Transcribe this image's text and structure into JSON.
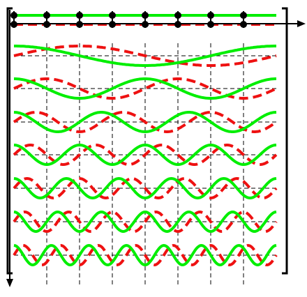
{
  "colors": {
    "cos_curve": "#00ee00",
    "sin_curve": "#ee1111",
    "grid": "#000000",
    "markers": "#000000",
    "bracket": "#000000",
    "arrow": "#000000"
  },
  "diagram": {
    "sample_count": 8,
    "mode_count": 8,
    "curves": [
      {
        "mode": 0,
        "cos_shown": true,
        "sin_shown": true
      },
      {
        "mode": 1,
        "cos_shown": true,
        "sin_shown": true
      },
      {
        "mode": 2,
        "cos_shown": true,
        "sin_shown": true
      },
      {
        "mode": 3,
        "cos_shown": true,
        "sin_shown": true
      },
      {
        "mode": 4,
        "cos_shown": true,
        "sin_shown": true
      },
      {
        "mode": 5,
        "cos_shown": true,
        "sin_shown": true
      },
      {
        "mode": 6,
        "cos_shown": true,
        "sin_shown": true
      },
      {
        "mode": 7,
        "cos_shown": true,
        "sin_shown": true
      }
    ]
  }
}
